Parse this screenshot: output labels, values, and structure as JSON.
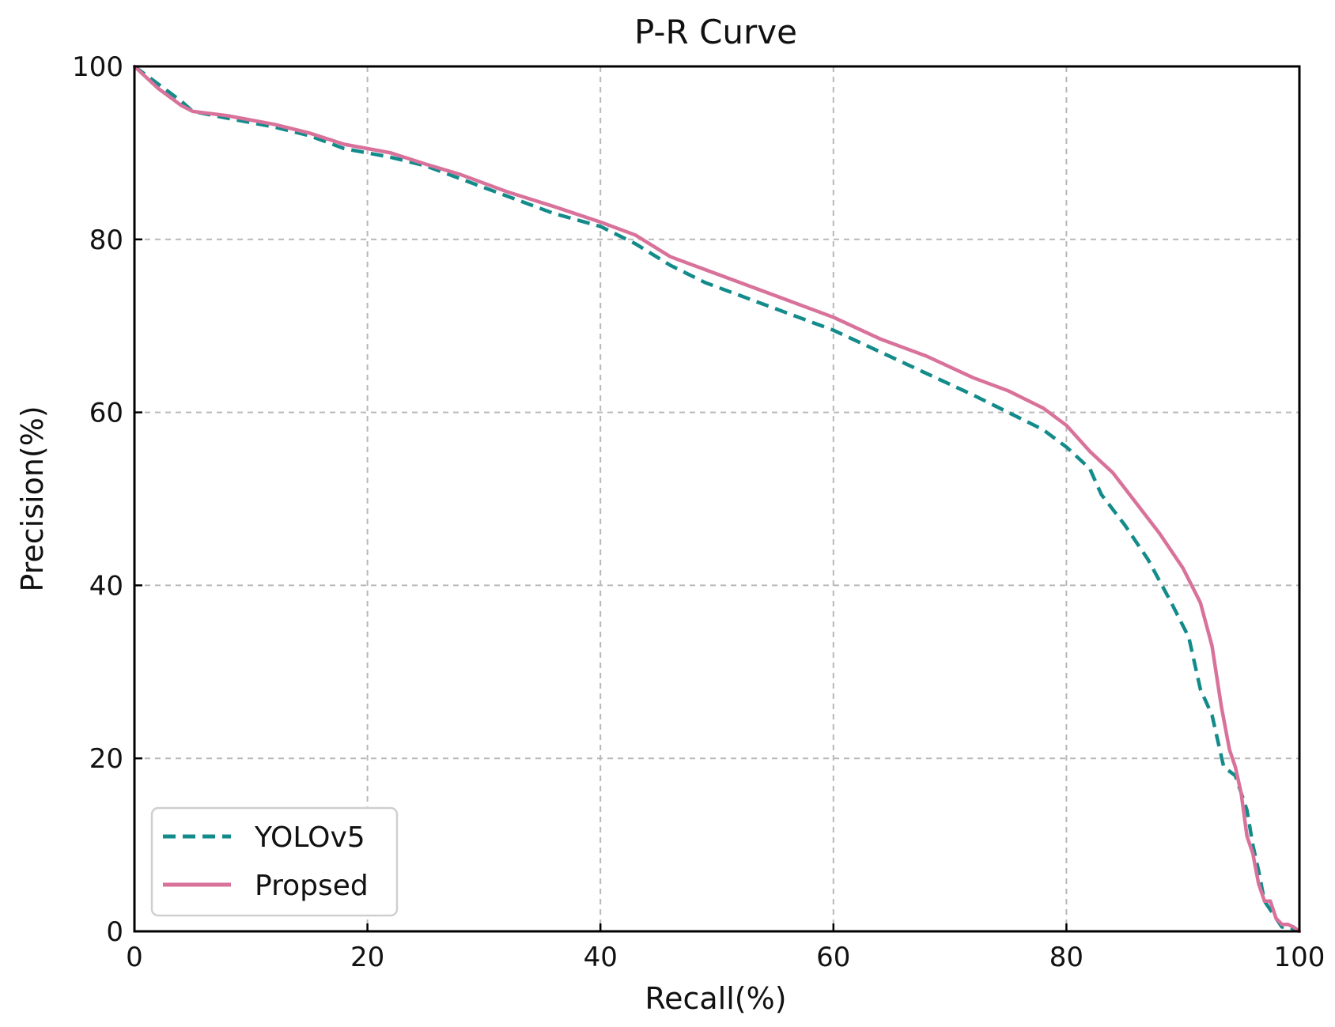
{
  "chart_data": {
    "type": "line",
    "title": "P-R Curve",
    "xlabel": "Recall(%)",
    "ylabel": "Precision(%)",
    "xlim": [
      0,
      100
    ],
    "ylim": [
      0,
      100
    ],
    "xticks": [
      0,
      20,
      40,
      60,
      80,
      100
    ],
    "yticks": [
      0,
      20,
      40,
      60,
      80,
      100
    ],
    "grid": true,
    "legend_position": "lower-left",
    "series": [
      {
        "name": "YOLOv5",
        "color": "#138b8b",
        "style": "dashed",
        "x": [
          0,
          2,
          3,
          4,
          5,
          8,
          12,
          15,
          18,
          22,
          25,
          28,
          32,
          36,
          40,
          43,
          46,
          49,
          52,
          56,
          60,
          64,
          68,
          72,
          75,
          78,
          80,
          82,
          83,
          85,
          87,
          89,
          90.5,
          91.5,
          92.5,
          93.5,
          94.5,
          95.5,
          96,
          96.5,
          97,
          98,
          98.5,
          99,
          99.5,
          100
        ],
        "y": [
          100,
          98,
          97,
          96,
          94.8,
          94,
          93,
          92,
          90.5,
          89.5,
          88.5,
          87,
          85,
          83,
          81.5,
          79.5,
          77,
          75,
          73.5,
          71.5,
          69.5,
          67,
          64.5,
          62,
          60,
          58,
          56,
          53.5,
          50.5,
          47,
          43,
          38,
          34,
          28,
          25,
          19,
          18,
          14,
          10,
          7,
          3.5,
          1.5,
          0.5,
          0.5,
          0.3,
          0
        ]
      },
      {
        "name": "Propsed",
        "color": "#d9729a",
        "style": "solid",
        "x": [
          0,
          2,
          4,
          5,
          8,
          12,
          15,
          18,
          22,
          25,
          28,
          32,
          36,
          40,
          43,
          46,
          48,
          52,
          56,
          60,
          64,
          68,
          72,
          75,
          78,
          80,
          82,
          84,
          86,
          88,
          90,
          91.5,
          92.5,
          93.3,
          94,
          94.5,
          95,
          95.5,
          96,
          96.5,
          97,
          97.5,
          98,
          98.5,
          99,
          99.5,
          100
        ],
        "y": [
          100,
          97.5,
          95.5,
          94.8,
          94.3,
          93.3,
          92.3,
          91,
          90,
          88.7,
          87.5,
          85.5,
          83.8,
          82,
          80.5,
          78,
          77,
          75,
          73,
          71,
          68.5,
          66.5,
          64,
          62.5,
          60.5,
          58.5,
          55.5,
          53,
          49.5,
          46,
          42,
          38,
          33,
          26,
          21,
          19,
          16,
          11,
          9,
          5.5,
          3.5,
          3.5,
          1.5,
          0.8,
          0.8,
          0.5,
          0
        ]
      }
    ]
  }
}
